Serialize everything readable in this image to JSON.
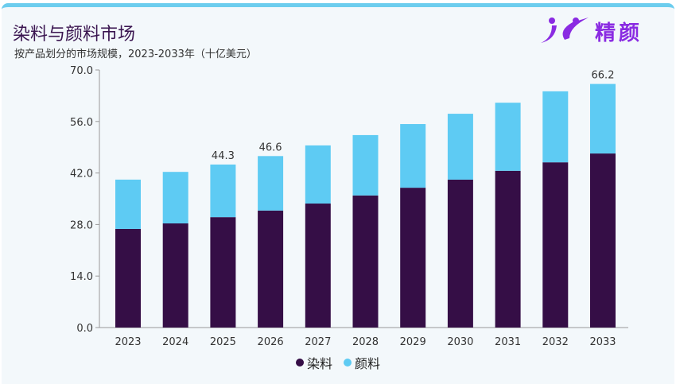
{
  "header": {
    "title": "染料与颜料市场",
    "subtitle": "按产品划分的市场规模，2023-2033年（十亿美元）",
    "logo_text": "精颜"
  },
  "chart_data": {
    "type": "bar",
    "stacked": true,
    "title": "染料与颜料市场",
    "subtitle": "按产品划分的市场规模，2023-2033年（十亿美元）",
    "categories": [
      "2023",
      "2024",
      "2025",
      "2026",
      "2027",
      "2028",
      "2029",
      "2030",
      "2031",
      "2032",
      "2033"
    ],
    "series": [
      {
        "name": "染料",
        "color": "#350e46",
        "values": [
          26.8,
          28.3,
          30.0,
          31.8,
          33.7,
          35.9,
          38.0,
          40.2,
          42.6,
          44.9,
          47.3
        ]
      },
      {
        "name": "颜料",
        "color": "#5ecbf3",
        "values": [
          13.4,
          14.0,
          14.3,
          14.8,
          15.8,
          16.4,
          17.3,
          17.9,
          18.5,
          19.3,
          18.9
        ]
      }
    ],
    "data_labels": [
      {
        "category": "2025",
        "text": "44.3"
      },
      {
        "category": "2026",
        "text": "46.6"
      },
      {
        "category": "2033",
        "text": "66.2"
      }
    ],
    "yticks": [
      "0.0",
      "14.0",
      "28.0",
      "42.0",
      "56.0",
      "70.0"
    ],
    "ylim": [
      0,
      70
    ],
    "grid": false,
    "legend": "bottom"
  }
}
